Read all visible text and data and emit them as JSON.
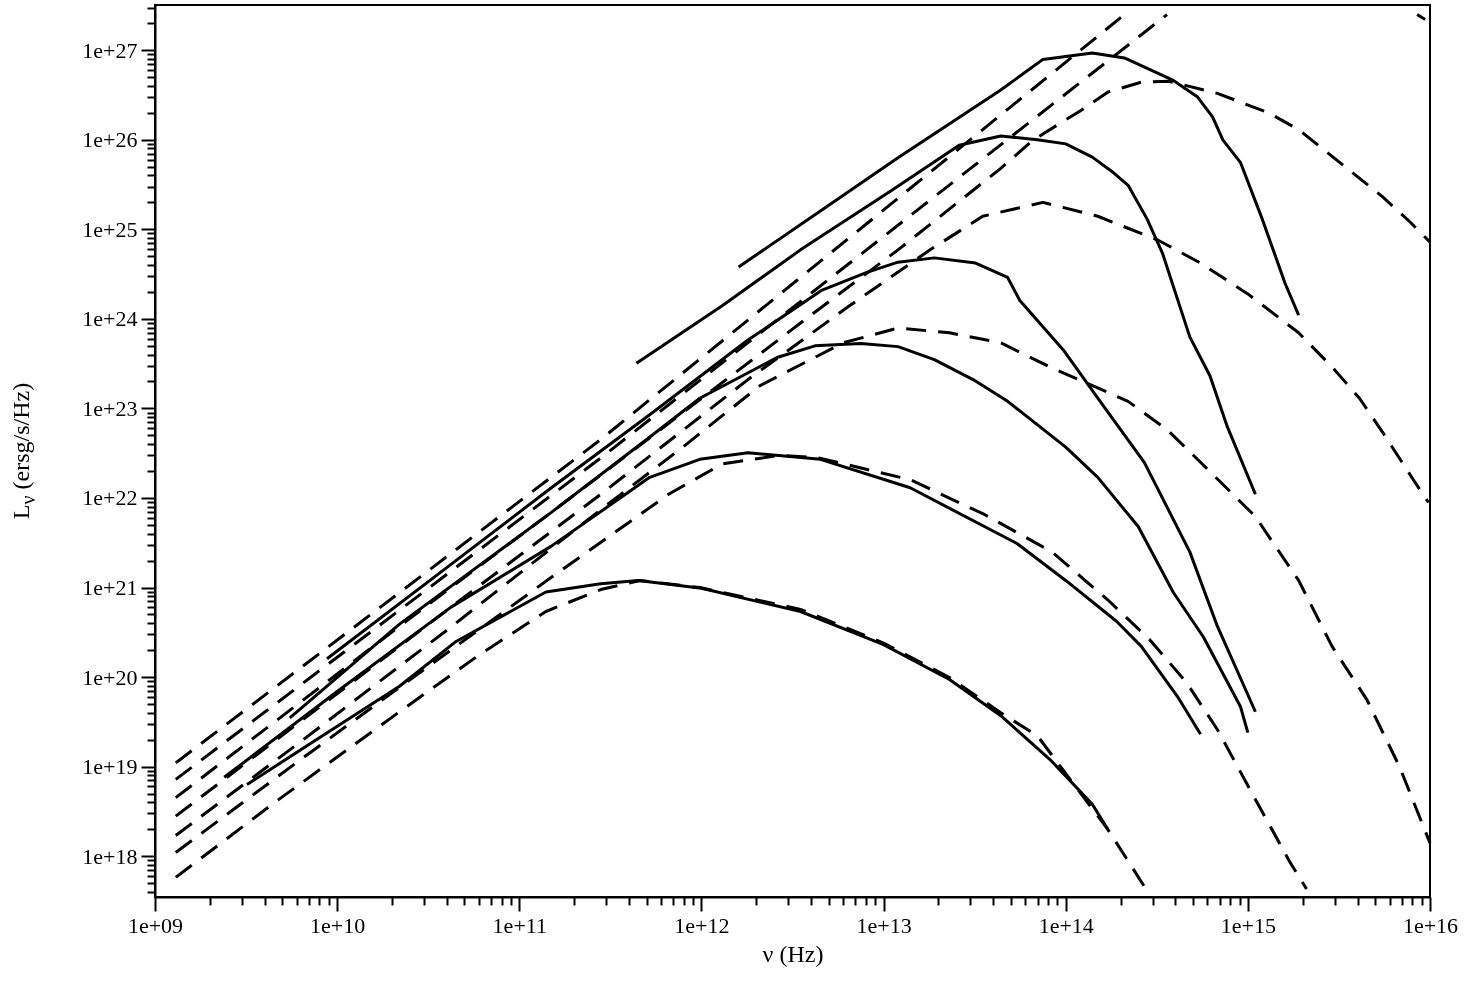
{
  "chart_data": {
    "type": "line",
    "xlabel": "ν (Hz)",
    "ylabel": "L$_{ν}$ (ersg/s/Hz)",
    "log": "xy",
    "xlim": [
      1000000000.0,
      1e+16
    ],
    "ylim": [
      3.5e+17,
      3.2e+27
    ],
    "xticks": [
      {
        "value": 1000000000.0,
        "label": "1e+09"
      },
      {
        "value": 2000000000.0,
        "label": null
      },
      {
        "value": 3000000000.0,
        "label": null
      },
      {
        "value": 4000000000.0,
        "label": null
      },
      {
        "value": 5000000000.0,
        "label": null
      },
      {
        "value": 6000000000.0,
        "label": null
      },
      {
        "value": 7000000000.0,
        "label": null
      },
      {
        "value": 8000000000.0,
        "label": null
      },
      {
        "value": 9000000000.0,
        "label": null
      },
      {
        "value": 10000000000.0,
        "label": "1e+10"
      },
      {
        "value": 20000000000.0,
        "label": null
      },
      {
        "value": 30000000000.0,
        "label": null
      },
      {
        "value": 40000000000.0,
        "label": null
      },
      {
        "value": 50000000000.0,
        "label": null
      },
      {
        "value": 60000000000.0,
        "label": null
      },
      {
        "value": 70000000000.0,
        "label": null
      },
      {
        "value": 80000000000.0,
        "label": null
      },
      {
        "value": 90000000000.0,
        "label": null
      },
      {
        "value": 100000000000.0,
        "label": "1e+11"
      },
      {
        "value": 200000000000.0,
        "label": null
      },
      {
        "value": 300000000000.0,
        "label": null
      },
      {
        "value": 400000000000.0,
        "label": null
      },
      {
        "value": 500000000000.0,
        "label": null
      },
      {
        "value": 600000000000.0,
        "label": null
      },
      {
        "value": 700000000000.0,
        "label": null
      },
      {
        "value": 800000000000.0,
        "label": null
      },
      {
        "value": 900000000000.0,
        "label": null
      },
      {
        "value": 1000000000000.0,
        "label": "1e+12"
      },
      {
        "value": 2000000000000.0,
        "label": null
      },
      {
        "value": 3000000000000.0,
        "label": null
      },
      {
        "value": 4000000000000.0,
        "label": null
      },
      {
        "value": 5000000000000.0,
        "label": null
      },
      {
        "value": 6000000000000.0,
        "label": null
      },
      {
        "value": 7000000000000.0,
        "label": null
      },
      {
        "value": 8000000000000.0,
        "label": null
      },
      {
        "value": 9000000000000.0,
        "label": null
      },
      {
        "value": 10000000000000.0,
        "label": "1e+13"
      },
      {
        "value": 20000000000000.0,
        "label": null
      },
      {
        "value": 30000000000000.0,
        "label": null
      },
      {
        "value": 40000000000000.0,
        "label": null
      },
      {
        "value": 50000000000000.0,
        "label": null
      },
      {
        "value": 60000000000000.0,
        "label": null
      },
      {
        "value": 70000000000000.0,
        "label": null
      },
      {
        "value": 80000000000000.0,
        "label": null
      },
      {
        "value": 90000000000000.0,
        "label": null
      },
      {
        "value": 100000000000000.0,
        "label": "1e+14"
      },
      {
        "value": 200000000000000.0,
        "label": null
      },
      {
        "value": 300000000000000.0,
        "label": null
      },
      {
        "value": 400000000000000.0,
        "label": null
      },
      {
        "value": 500000000000000.0,
        "label": null
      },
      {
        "value": 600000000000000.0,
        "label": null
      },
      {
        "value": 700000000000000.0,
        "label": null
      },
      {
        "value": 800000000000000.0,
        "label": null
      },
      {
        "value": 900000000000000.0,
        "label": null
      },
      {
        "value": 1000000000000000.0,
        "label": "1e+15"
      },
      {
        "value": 2000000000000000.0,
        "label": null
      },
      {
        "value": 3000000000000000.0,
        "label": null
      },
      {
        "value": 4000000000000000.0,
        "label": null
      },
      {
        "value": 5000000000000000.0,
        "label": null
      },
      {
        "value": 6000000000000000.0,
        "label": null
      },
      {
        "value": 7000000000000000.0,
        "label": null
      },
      {
        "value": 8000000000000000.0,
        "label": null
      },
      {
        "value": 9000000000000000.0,
        "label": null
      },
      {
        "value": 1e+16,
        "label": "1e+16"
      }
    ],
    "yticks": [
      {
        "value": 4e+17,
        "label": null
      },
      {
        "value": 5e+17,
        "label": null
      },
      {
        "value": 6e+17,
        "label": null
      },
      {
        "value": 7e+17,
        "label": null
      },
      {
        "value": 8e+17,
        "label": null
      },
      {
        "value": 9e+17,
        "label": null
      },
      {
        "value": 1e+18,
        "label": "1e+18"
      },
      {
        "value": 2e+18,
        "label": null
      },
      {
        "value": 3e+18,
        "label": null
      },
      {
        "value": 4e+18,
        "label": null
      },
      {
        "value": 5e+18,
        "label": null
      },
      {
        "value": 6e+18,
        "label": null
      },
      {
        "value": 7e+18,
        "label": null
      },
      {
        "value": 8e+18,
        "label": null
      },
      {
        "value": 9e+18,
        "label": null
      },
      {
        "value": 1e+19,
        "label": "1e+19"
      },
      {
        "value": 2e+19,
        "label": null
      },
      {
        "value": 3e+19,
        "label": null
      },
      {
        "value": 4e+19,
        "label": null
      },
      {
        "value": 5e+19,
        "label": null
      },
      {
        "value": 6e+19,
        "label": null
      },
      {
        "value": 7e+19,
        "label": null
      },
      {
        "value": 8e+19,
        "label": null
      },
      {
        "value": 9e+19,
        "label": null
      },
      {
        "value": 1e+20,
        "label": "1e+20"
      },
      {
        "value": 2e+20,
        "label": null
      },
      {
        "value": 3e+20,
        "label": null
      },
      {
        "value": 4e+20,
        "label": null
      },
      {
        "value": 5e+20,
        "label": null
      },
      {
        "value": 6e+20,
        "label": null
      },
      {
        "value": 7e+20,
        "label": null
      },
      {
        "value": 8e+20,
        "label": null
      },
      {
        "value": 9e+20,
        "label": null
      },
      {
        "value": 1e+21,
        "label": "1e+21"
      },
      {
        "value": 2e+21,
        "label": null
      },
      {
        "value": 3e+21,
        "label": null
      },
      {
        "value": 4e+21,
        "label": null
      },
      {
        "value": 5e+21,
        "label": null
      },
      {
        "value": 6e+21,
        "label": null
      },
      {
        "value": 7e+21,
        "label": null
      },
      {
        "value": 8e+21,
        "label": null
      },
      {
        "value": 9e+21,
        "label": null
      },
      {
        "value": 1e+22,
        "label": "1e+22"
      },
      {
        "value": 2e+22,
        "label": null
      },
      {
        "value": 3e+22,
        "label": null
      },
      {
        "value": 4e+22,
        "label": null
      },
      {
        "value": 5e+22,
        "label": null
      },
      {
        "value": 6e+22,
        "label": null
      },
      {
        "value": 7e+22,
        "label": null
      },
      {
        "value": 8e+22,
        "label": null
      },
      {
        "value": 9e+22,
        "label": null
      },
      {
        "value": 1e+23,
        "label": "1e+23"
      },
      {
        "value": 2e+23,
        "label": null
      },
      {
        "value": 3e+23,
        "label": null
      },
      {
        "value": 4e+23,
        "label": null
      },
      {
        "value": 5e+23,
        "label": null
      },
      {
        "value": 6e+23,
        "label": null
      },
      {
        "value": 7e+23,
        "label": null
      },
      {
        "value": 8e+23,
        "label": null
      },
      {
        "value": 9e+23,
        "label": null
      },
      {
        "value": 1e+24,
        "label": "1e+24"
      },
      {
        "value": 2e+24,
        "label": null
      },
      {
        "value": 3e+24,
        "label": null
      },
      {
        "value": 4e+24,
        "label": null
      },
      {
        "value": 5e+24,
        "label": null
      },
      {
        "value": 6e+24,
        "label": null
      },
      {
        "value": 7e+24,
        "label": null
      },
      {
        "value": 8e+24,
        "label": null
      },
      {
        "value": 9e+24,
        "label": null
      },
      {
        "value": 1e+25,
        "label": "1e+25"
      },
      {
        "value": 2e+25,
        "label": null
      },
      {
        "value": 3e+25,
        "label": null
      },
      {
        "value": 4e+25,
        "label": null
      },
      {
        "value": 5e+25,
        "label": null
      },
      {
        "value": 6e+25,
        "label": null
      },
      {
        "value": 7e+25,
        "label": null
      },
      {
        "value": 8e+25,
        "label": null
      },
      {
        "value": 9e+25,
        "label": null
      },
      {
        "value": 1e+26,
        "label": "1e+26"
      },
      {
        "value": 2e+26,
        "label": null
      },
      {
        "value": 3e+26,
        "label": null
      },
      {
        "value": 4e+26,
        "label": null
      },
      {
        "value": 5e+26,
        "label": null
      },
      {
        "value": 6e+26,
        "label": null
      },
      {
        "value": 7e+26,
        "label": null
      },
      {
        "value": 8e+26,
        "label": null
      },
      {
        "value": 9e+26,
        "label": null
      },
      {
        "value": 1e+27,
        "label": "1e+27"
      },
      {
        "value": 2e+27,
        "label": null
      },
      {
        "value": 3e+27,
        "label": null
      }
    ],
    "series": [
      {
        "color": "#000000",
        "line_style": "solid",
        "x": [
          3200000000.0,
          7100000000.0,
          22000000000.0,
          45000000000.0,
          140000000000.0,
          280000000000.0,
          450000000000.0,
          1000000000000.0,
          3500000000000.0,
          10000000000000.0,
          23000000000000.0,
          44000000000000.0,
          82000000000000.0,
          140000000000000.0,
          170000000000000.0
        ],
        "values": [
          6.3e+18,
          1.8e+19,
          7.9e+19,
          2.5e+20,
          8.9e+20,
          1.1e+21,
          1.2e+21,
          9.8e+20,
          5.4e+20,
          2.3e+20,
          9.4e+19,
          3.7e+19,
          1.2e+19,
          3.8e+18,
          2e+18
        ]
      },
      {
        "color": "#000000",
        "line_style": "solid",
        "x": [
          2400000000.0,
          10000000000.0,
          42000000000.0,
          150000000000.0,
          520000000000.0,
          980000000000.0,
          1800000000000.0,
          4500000000000.0,
          14000000000000.0,
          54000000000000.0,
          100000000000000.0,
          190000000000000.0,
          260000000000000.0,
          410000000000000.0,
          550000000000000.0
        ],
        "values": [
          7.6e+18,
          6.9e+19,
          6e+20,
          2.9e+21,
          1.7e+22,
          2.7e+22,
          3.2e+22,
          2.7e+22,
          1.3e+22,
          3.1e+21,
          1.2e+21,
          4.2e+20,
          2.2e+20,
          6.1e+19,
          2.3e+19
        ]
      },
      {
        "color": "#000000",
        "line_style": "solid",
        "x": [
          5500000000.0,
          22000000000.0,
          150000000000.0,
          500000000000.0,
          980000000000.0,
          2600000000000.0,
          4200000000000.0,
          7500000000000.0,
          12000000000000.0,
          19000000000000.0,
          31000000000000.0,
          48000000000000.0,
          100000000000000.0,
          150000000000000.0,
          250000000000000.0,
          390000000000000.0,
          570000000000000.0,
          910000000000000.0,
          1000000000000000.0
        ],
        "values": [
          3.5e+19,
          3.9e+20,
          6.9e+21,
          4.5e+22,
          1.3e+23,
          3.7e+23,
          5e+23,
          5.3e+23,
          4.9e+23,
          3.5e+23,
          2.1e+23,
          1.2e+23,
          3.7e+22,
          1.7e+22,
          4.8e+21,
          8.8e+20,
          2.8e+20,
          4.7e+19,
          2.4e+19
        ]
      },
      {
        "color": "#000000",
        "line_style": "solid",
        "x": [
          8800000000.0,
          42000000000.0,
          150000000000.0,
          520000000000.0,
          1800000000000.0,
          4600000000000.0,
          8100000000000.0,
          12000000000000.0,
          19000000000000.0,
          32000000000000.0,
          48000000000000.0,
          56000000000000.0,
          97000000000000.0,
          150000000000000.0,
          270000000000000.0,
          480000000000000.0,
          680000000000000.0,
          1100000000000000.0
        ],
        "values": [
          1.6e+20,
          1.8e+21,
          1.3e+22,
          8.5e+22,
          5.8e+23,
          2.1e+24,
          3.3e+24,
          4.3e+24,
          4.8e+24,
          4.2e+24,
          2.9e+24,
          1.6e+24,
          4.5e+23,
          1.3e+23,
          2.5e+22,
          2.5e+21,
          3.7e+20,
          4.1e+19
        ]
      },
      {
        "color": "#000000",
        "line_style": "solid",
        "x": [
          440000000000.0,
          1300000000000.0,
          3500000000000.0,
          11000000000000.0,
          26000000000000.0,
          44000000000000.0,
          70000000000000.0,
          100000000000000.0,
          140000000000000.0,
          180000000000000.0,
          220000000000000.0,
          280000000000000.0,
          340000000000000.0,
          480000000000000.0,
          620000000000000.0,
          770000000000000.0,
          1100000000000000.0
        ],
        "values": [
          3.2e+23,
          1.4e+24,
          5.9e+24,
          2.7e+25,
          8.7e+25,
          1.1e+26,
          1e+26,
          9e+25,
          6.4e+25,
          4.4e+25,
          3.1e+25,
          1.3e+25,
          5.4e+24,
          6.3e+23,
          2.3e+23,
          6.3e+22,
          1.1e+22
        ]
      },
      {
        "color": "#000000",
        "line_style": "solid",
        "x": [
          1600000000000.0,
          4500000000000.0,
          12000000000000.0,
          44000000000000.0,
          75000000000000.0,
          140000000000000.0,
          210000000000000.0,
          390000000000000.0,
          530000000000000.0,
          640000000000000.0,
          730000000000000.0,
          910000000000000.0,
          1200000000000000.0,
          1600000000000000.0,
          1900000000000000.0
        ],
        "values": [
          3.8e+24,
          1.6e+25,
          6.3e+25,
          3.6e+26,
          7.9e+26,
          9.3e+26,
          8.2e+26,
          4.6e+26,
          3e+26,
          1.8e+26,
          9.9e+25,
          5.6e+25,
          1.3e+25,
          2.5e+24,
          1.1e+24
        ]
      },
      {
        "color": "#000000",
        "line_style": "dashed",
        "x": [
          1300000000.0,
          4400000000.0,
          22000000000.0,
          61000000000.0,
          140000000000.0,
          280000000000.0,
          460000000000.0,
          980000000000.0,
          3500000000000.0,
          10000000000000.0,
          23000000000000.0,
          44000000000000.0,
          70000000000000.0,
          170000000000000.0,
          280000000000000.0
        ],
        "values": [
          5.8e+17,
          3.8e+18,
          4.1e+19,
          1.8e+20,
          5.4e+20,
          9.5e+20,
          1.2e+21,
          1e+21,
          5.7e+20,
          2.4e+20,
          9.9e+19,
          4e+19,
          2.2e+19,
          2e+18,
          4.1e+17
        ]
      },
      {
        "color": "#000000",
        "line_style": "dashed",
        "x": [
          1300000000.0,
          6300000000.0,
          42000000000.0,
          150000000000.0,
          660000000000.0,
          1300000000000.0,
          2700000000000.0,
          4400000000000.0,
          14000000000000.0,
          36000000000000.0,
          84000000000000.0,
          170000000000000.0,
          290000000000000.0,
          460000000000000.0,
          680000000000000.0,
          1100000000000000.0,
          1700000000000000.0,
          2100000000000000.0
        ],
        "values": [
          1.1e+18,
          1.2e+19,
          2e+20,
          1.3e+21,
          1.1e+22,
          2.4e+22,
          3e+22,
          2.8e+22,
          1.6e+22,
          6.5e+21,
          2.5e+21,
          7.3e+20,
          2.6e+20,
          8.7e+19,
          2.6e+19,
          4.3e+18,
          8.6e+17,
          4.3e+17
        ]
      },
      {
        "color": "#000000",
        "line_style": "dashed",
        "x": [
          1300000000.0,
          6300000000.0,
          42000000000.0,
          280000000000.0,
          790000000000.0,
          2100000000000.0,
          6000000000000.0,
          12000000000000.0,
          23000000000000.0,
          44000000000000.0,
          82000000000000.0,
          220000000000000.0,
          360000000000000.0,
          600000000000000.0,
          1100000000000000.0,
          1900000000000000.0,
          2900000000000000.0,
          4500000000000000.0,
          6800000000000000.0,
          1e+16
        ],
        "values": [
          1.7e+18,
          1.9e+19,
          3.6e+20,
          7.4e+21,
          3.7e+22,
          1.8e+23,
          5.4e+23,
          7.9e+23,
          7e+23,
          5.4e+23,
          2.9e+23,
          1.2e+23,
          5.8e+22,
          2.1e+22,
          6.2e+21,
          1.2e+21,
          2.2e+20,
          5.6e+19,
          1e+19,
          1.4e+18
        ]
      },
      {
        "color": "#000000",
        "line_style": "dashed",
        "x": [
          1300000000.0,
          6300000000.0,
          42000000000.0,
          280000000000.0,
          1800000000000.0,
          6500000000000.0,
          18000000000000.0,
          35000000000000.0,
          75000000000000.0,
          150000000000000.0,
          320000000000000.0,
          550000000000000.0,
          1000000000000000.0,
          1900000000000000.0,
          2900000000000000.0,
          4100000000000000.0,
          5500000000000000.0,
          8100000000000000.0,
          9800000000000000.0
        ],
        "values": [
          2.8e+18,
          3.2e+19,
          6e+20,
          1.1e+22,
          2.1e+23,
          1.4e+24,
          5.9e+24,
          1.4e+25,
          2e+25,
          1.4e+25,
          7.6e+24,
          4.2e+24,
          1.9e+24,
          7e+23,
          2.9e+23,
          1.3e+23,
          5.4e+22,
          1.6e+22,
          8.9e+21
        ]
      },
      {
        "color": "#000000",
        "line_style": "dashed",
        "x": [
          1300000000.0,
          22000000000.0,
          280000000000.0,
          3500000000000.0,
          12000000000000.0,
          44000000000000.0,
          66000000000000.0,
          120000000000000.0,
          170000000000000.0,
          260000000000000.0,
          370000000000000.0,
          680000000000000.0,
          1300000000000000.0,
          1900000000000000.0,
          3600000000000000.0,
          5500000000000000.0,
          7800000000000000.0,
          1e+16
        ],
        "values": [
          4.5e+18,
          3.7e+20,
          1.8e+22,
          9e+23,
          5.9e+24,
          4.8e+25,
          9.9e+25,
          2.1e+26,
          3.4e+26,
          4.4e+26,
          4.5e+26,
          3.3e+26,
          2e+26,
          1.3e+26,
          4.6e+25,
          2.3e+25,
          1.2e+25,
          7.2e+24
        ]
      },
      {
        "color": "#000000",
        "line_style": "dashed",
        "x": [
          1300000000.0,
          280000000000.0,
          360000000000000.0
        ],
        "values": [
          7.2e+18,
          2.8e+22,
          2.5e+27
        ]
      },
      {
        "color": "#000000",
        "line_style": "dashed",
        "x": [
          1300000000.0,
          280000000000.0,
          210000000000000.0,
          1500000000000000.0,
          8500000000000000.0,
          9400000000000000.0
        ],
        "values": [
          1.1e+19,
          4.5e+22,
          2.5e+27,
          null,
          2.5e+27,
          2.2e+27
        ]
      }
    ]
  }
}
